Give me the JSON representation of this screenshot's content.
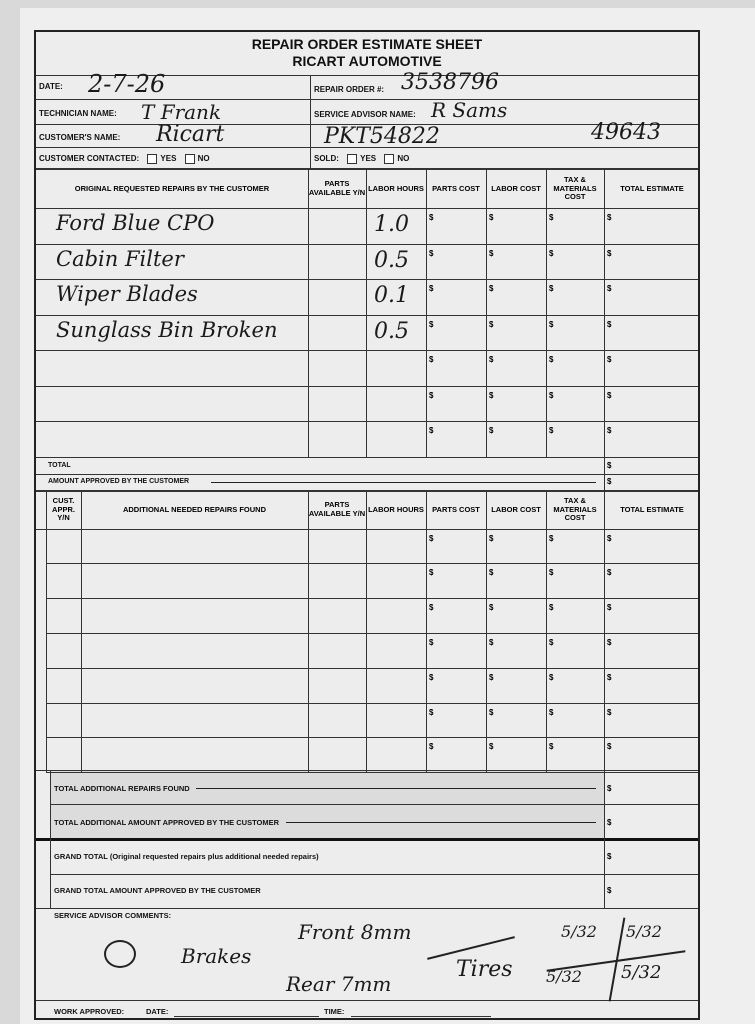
{
  "header": {
    "title": "REPAIR ORDER ESTIMATE SHEET",
    "company": "RICART AUTOMOTIVE"
  },
  "fields": {
    "date_label": "DATE:",
    "date_value": "2-7-26",
    "repair_order_label": "REPAIR ORDER #:",
    "repair_order_value": "3538796",
    "technician_label": "TECHNICIAN NAME:",
    "technician_value": "T Frank",
    "service_advisor_label": "SERVICE ADVISOR NAME:",
    "service_advisor_value": "R Sams",
    "customer_label": "CUSTOMER'S NAME:",
    "customer_value": "Ricart",
    "customer_extra_1": "PKT54822",
    "customer_extra_2": "49643",
    "contacted_label": "CUSTOMER CONTACTED:",
    "sold_label": "SOLD:",
    "yes": "YES",
    "no": "NO"
  },
  "columns": {
    "original": "ORIGINAL REQUESTED REPAIRS BY THE CUSTOMER",
    "parts_available": "PARTS AVAILABLE Y/N",
    "labor_hours": "LABOR HOURS",
    "parts_cost": "PARTS COST",
    "labor_cost": "LABOR COST",
    "tax": "TAX & MATERIALS COST",
    "total": "TOTAL ESTIMATE",
    "cust_appr": "CUST. APPR. Y/N",
    "additional": "ADDITIONAL NEEDED REPAIRS FOUND"
  },
  "currency": "$",
  "original_repairs": [
    {
      "description": "Ford Blue CPO",
      "labor_hours": "1.0"
    },
    {
      "description": "Cabin Filter",
      "labor_hours": "0.5"
    },
    {
      "description": "Wiper Blades",
      "labor_hours": "0.1"
    },
    {
      "description": "Sunglass Bin Broken",
      "labor_hours": "0.5"
    },
    {
      "description": "",
      "labor_hours": ""
    },
    {
      "description": "",
      "labor_hours": ""
    },
    {
      "description": "",
      "labor_hours": ""
    }
  ],
  "totals": {
    "total": "TOTAL",
    "amount_approved": "AMOUNT APPROVED BY THE CUSTOMER",
    "total_additional": "TOTAL ADDITIONAL REPAIRS FOUND",
    "total_additional_approved": "TOTAL ADDITIONAL AMOUNT APPROVED BY THE CUSTOMER",
    "grand_total": "GRAND TOTAL (Original requested repairs plus additional needed repairs)",
    "grand_total_approved": "GRAND TOTAL AMOUNT APPROVED BY THE CUSTOMER"
  },
  "comments": {
    "label": "SERVICE ADVISOR COMMENTS:",
    "brakes": "Brakes",
    "front": "Front 8mm",
    "rear": "Rear 7mm",
    "tires": "Tires",
    "tread_1": "5/32",
    "tread_2": "5/32",
    "tread_3": "5/32",
    "tread_4": "5/32"
  },
  "footer": {
    "work_approved": "WORK APPROVED:",
    "date": "DATE:",
    "time": "TIME:"
  }
}
